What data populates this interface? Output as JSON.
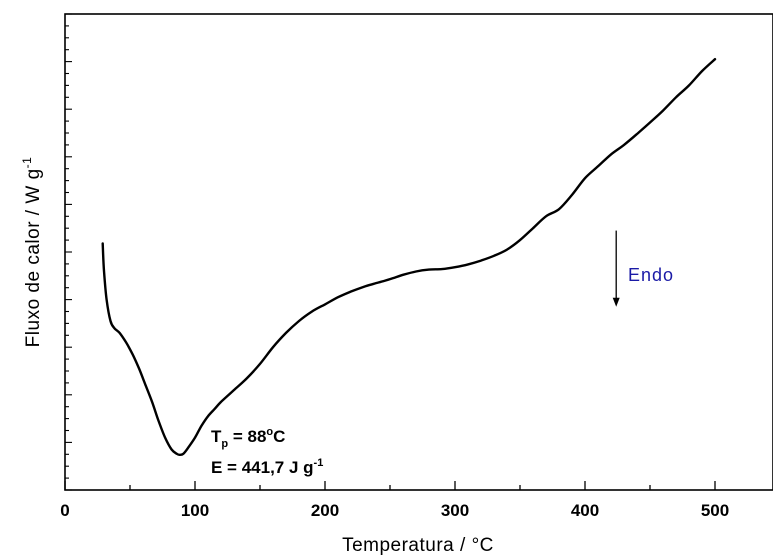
{
  "chart_data": {
    "type": "line",
    "xlabel": "Temperatura / °C",
    "ylabel": {
      "main": "Fluxo de calor / W g",
      "sup": "-1"
    },
    "xlim": [
      0,
      550
    ],
    "ylim": [
      0,
      1
    ],
    "x_ticks": [
      0,
      100,
      200,
      300,
      400,
      500
    ],
    "x_ticks_labeled": true,
    "y_ticks_labeled": false,
    "grid": false,
    "series": [
      {
        "color": "#000000",
        "x": [
          29,
          30,
          32,
          35,
          38,
          42,
          47,
          52,
          57,
          62,
          67,
          72,
          77,
          82,
          86,
          88,
          91,
          95,
          100,
          105,
          110,
          115,
          120,
          130,
          140,
          150,
          160,
          170,
          180,
          190,
          200,
          210,
          220,
          230,
          240,
          250,
          260,
          270,
          280,
          290,
          300,
          310,
          320,
          330,
          340,
          350,
          360,
          370,
          380,
          390,
          400,
          410,
          420,
          430,
          440,
          450,
          460,
          470,
          480,
          490,
          500
        ],
        "y": [
          0.518,
          0.46,
          0.4,
          0.355,
          0.34,
          0.33,
          0.31,
          0.285,
          0.255,
          0.22,
          0.185,
          0.145,
          0.11,
          0.085,
          0.076,
          0.074,
          0.076,
          0.09,
          0.11,
          0.135,
          0.155,
          0.17,
          0.185,
          0.21,
          0.235,
          0.265,
          0.3,
          0.33,
          0.355,
          0.375,
          0.39,
          0.405,
          0.417,
          0.427,
          0.435,
          0.443,
          0.452,
          0.459,
          0.463,
          0.464,
          0.468,
          0.474,
          0.482,
          0.492,
          0.505,
          0.525,
          0.55,
          0.575,
          0.59,
          0.62,
          0.655,
          0.68,
          0.705,
          0.725,
          0.748,
          0.772,
          0.797,
          0.825,
          0.85,
          0.88,
          0.905
        ]
      }
    ],
    "arrow": {
      "x": 424,
      "y_start": 0.545,
      "y_end": 0.385,
      "label": "Endo",
      "label_color": "#1a1aa6"
    },
    "annotations": {
      "tp": {
        "main": "T",
        "sub": "p",
        "rest": " = 88",
        "deg": "o",
        "unit": "C"
      },
      "e": {
        "main": "E  = 441,7 J g",
        "sup": "-1"
      }
    }
  }
}
